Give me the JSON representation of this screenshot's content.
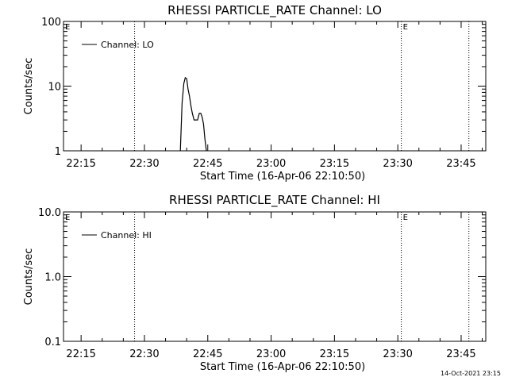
{
  "footer": {
    "timestamp": "14-Oct-2021 23:15"
  },
  "chart_data": [
    {
      "type": "line",
      "title": "RHESSI PARTICLE_RATE Channel: LO",
      "xlabel": "Start Time (16-Apr-06 22:10:50)",
      "ylabel": "Counts/sec",
      "yscale": "log",
      "ylim": [
        1,
        100
      ],
      "xlim": [
        "22:10:50",
        "23:50:50"
      ],
      "yticks": [
        1,
        10,
        100
      ],
      "ytick_labels": [
        "1",
        "10",
        "100"
      ],
      "xtick_labels": [
        "22:15",
        "22:30",
        "22:45",
        "23:00",
        "23:15",
        "23:30",
        "23:45"
      ],
      "xtick_values": [
        "22:15",
        "22:30",
        "22:45",
        "23:00",
        "23:15",
        "23:30",
        "23:45"
      ],
      "legend": {
        "position": "top-left",
        "entries": [
          "Channel: LO"
        ]
      },
      "event_markers": [
        {
          "time": "22:27:40",
          "label": ""
        },
        {
          "time": "23:30:50",
          "label": "E"
        },
        {
          "time": "23:46:50",
          "label": ""
        }
      ],
      "start_marker_label": "E",
      "series": [
        {
          "name": "Channel: LO",
          "x": [
            "22:38:30",
            "22:38:55",
            "22:39:20",
            "22:39:40",
            "22:40:00",
            "22:40:20",
            "22:40:40",
            "22:41:00",
            "22:41:20",
            "22:41:45",
            "22:42:10",
            "22:42:35",
            "22:43:00",
            "22:43:20",
            "22:43:40",
            "22:44:00",
            "22:44:20",
            "22:44:40"
          ],
          "y": [
            1,
            5.5,
            11,
            13.5,
            13,
            9,
            7,
            5,
            3.8,
            3,
            3,
            3,
            3.8,
            3.8,
            3.3,
            2.6,
            1.5,
            1
          ]
        }
      ]
    },
    {
      "type": "line",
      "title": "RHESSI PARTICLE_RATE Channel: HI",
      "xlabel": "Start Time (16-Apr-06 22:10:50)",
      "ylabel": "Counts/sec",
      "yscale": "log",
      "ylim": [
        0.1,
        10
      ],
      "xlim": [
        "22:10:50",
        "23:50:50"
      ],
      "yticks": [
        0.1,
        1,
        10
      ],
      "ytick_labels": [
        "0.1",
        "1.0",
        "10.0"
      ],
      "xtick_labels": [
        "22:15",
        "22:30",
        "22:45",
        "23:00",
        "23:15",
        "23:30",
        "23:45"
      ],
      "xtick_values": [
        "22:15",
        "22:30",
        "22:45",
        "23:00",
        "23:15",
        "23:30",
        "23:45"
      ],
      "legend": {
        "position": "top-left",
        "entries": [
          "Channel: HI"
        ]
      },
      "event_markers": [
        {
          "time": "22:27:40",
          "label": ""
        },
        {
          "time": "23:30:50",
          "label": "E"
        },
        {
          "time": "23:46:50",
          "label": ""
        }
      ],
      "start_marker_label": "E",
      "series": [
        {
          "name": "Channel: HI",
          "x": [],
          "y": []
        }
      ]
    }
  ]
}
